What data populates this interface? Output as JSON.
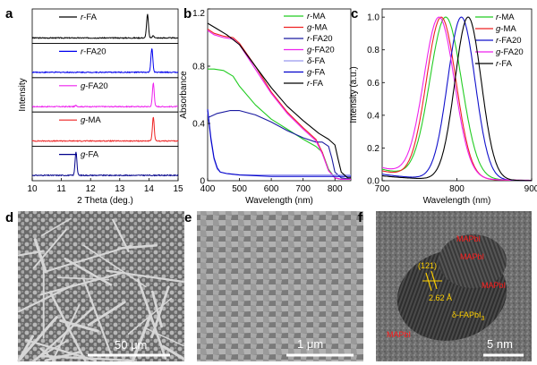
{
  "panels": {
    "a": "a",
    "b": "b",
    "c": "c",
    "d": "d",
    "e": "e",
    "f": "f"
  },
  "colors": {
    "r-MA": "#22cc22",
    "g-MA": "#ee2222",
    "r-FA20": "#1a1aa0",
    "g-FA20": "#ee22ee",
    "delta-FA": "#9999ee",
    "g-FA": "#0000cc",
    "r-FA": "#000000",
    "r-FA20-c": "#1111cc",
    "xrd_g-FA": "#00008b",
    "xrd_r-FA20": "#0000ee"
  },
  "chart_data": [
    {
      "type": "line",
      "panel": "a",
      "xlabel": "2 Theta (deg.)",
      "ylabel": "Intensity",
      "xlim": [
        10,
        15
      ],
      "xticks": [
        "10",
        "11",
        "12",
        "13",
        "14",
        "15"
      ],
      "stacked": true,
      "series": [
        {
          "name": "r-FA",
          "prefix": "r",
          "suffix": "-FA",
          "peaks": [
            {
              "x": 13.95,
              "height": 1.0
            },
            {
              "x": 14.15,
              "height": 0.1
            }
          ]
        },
        {
          "name": "r-FA20",
          "prefix": "r",
          "suffix": "-FA20",
          "peaks": [
            {
              "x": 14.1,
              "height": 1.0
            }
          ]
        },
        {
          "name": "g-FA20",
          "prefix": "g",
          "suffix": "-FA20",
          "peaks": [
            {
              "x": 14.15,
              "height": 1.0
            },
            {
              "x": 11.5,
              "height": 0.05
            }
          ]
        },
        {
          "name": "g-MA",
          "prefix": "g",
          "suffix": "-MA",
          "peaks": [
            {
              "x": 14.15,
              "height": 1.0
            }
          ]
        },
        {
          "name": "g-FA",
          "prefix": "g",
          "suffix": "-FA",
          "peaks": [
            {
              "x": 11.5,
              "height": 1.0
            }
          ]
        }
      ]
    },
    {
      "type": "line",
      "panel": "b",
      "xlabel": "Wavelength (nm)",
      "ylabel": "Absorbance",
      "xlim": [
        400,
        850
      ],
      "ylim": [
        0,
        1.2
      ],
      "xticks": [
        "400",
        "500",
        "600",
        "700",
        "800"
      ],
      "yticks": [
        "0",
        "0.4",
        "0.8",
        "1.2"
      ],
      "legend": "right",
      "series": [
        {
          "name": "r-MA",
          "prefix": "r",
          "suffix": "-MA",
          "x": [
            400,
            420,
            450,
            480,
            500,
            550,
            600,
            650,
            700,
            740,
            760,
            780,
            800,
            820,
            850
          ],
          "y": [
            0.78,
            0.78,
            0.77,
            0.73,
            0.66,
            0.53,
            0.43,
            0.36,
            0.29,
            0.24,
            0.2,
            0.08,
            0.02,
            0.01,
            0.01
          ]
        },
        {
          "name": "g-MA",
          "prefix": "g",
          "suffix": "-MA",
          "x": [
            400,
            420,
            450,
            480,
            500,
            550,
            600,
            650,
            700,
            740,
            760,
            780,
            800,
            820,
            850
          ],
          "y": [
            1.06,
            1.03,
            1.01,
            1.0,
            0.96,
            0.8,
            0.62,
            0.48,
            0.37,
            0.29,
            0.2,
            0.07,
            0.02,
            0.01,
            0.01
          ]
        },
        {
          "name": "r-FA20",
          "prefix": "r",
          "suffix": "-FA20",
          "x": [
            400,
            430,
            470,
            500,
            550,
            600,
            650,
            700,
            740,
            760,
            780,
            790,
            800,
            820,
            850
          ],
          "y": [
            0.44,
            0.47,
            0.49,
            0.49,
            0.46,
            0.41,
            0.35,
            0.3,
            0.27,
            0.27,
            0.24,
            0.16,
            0.06,
            0.02,
            0.01
          ]
        },
        {
          "name": "g-FA20",
          "prefix": "g",
          "suffix": "-FA20",
          "x": [
            400,
            420,
            450,
            480,
            500,
            550,
            600,
            650,
            700,
            740,
            760,
            780,
            800,
            820,
            850
          ],
          "y": [
            1.05,
            1.02,
            1.0,
            0.99,
            0.95,
            0.78,
            0.61,
            0.47,
            0.36,
            0.28,
            0.19,
            0.07,
            0.02,
            0.01,
            0.01
          ]
        },
        {
          "name": "δ-FA",
          "prefix": "δ",
          "suffix": "-FA",
          "x": [
            400,
            410,
            420,
            430,
            440,
            460,
            500,
            600,
            700,
            850
          ],
          "y": [
            0.48,
            0.28,
            0.15,
            0.08,
            0.06,
            0.05,
            0.04,
            0.04,
            0.04,
            0.04
          ]
        },
        {
          "name": "g-FA",
          "prefix": "g",
          "suffix": "-FA",
          "x": [
            400,
            410,
            420,
            430,
            440,
            460,
            500,
            600,
            700,
            850
          ],
          "y": [
            0.5,
            0.3,
            0.16,
            0.09,
            0.06,
            0.05,
            0.04,
            0.03,
            0.03,
            0.03
          ]
        },
        {
          "name": "r-FA",
          "prefix": "r",
          "suffix": "-FA",
          "x": [
            400,
            430,
            460,
            500,
            550,
            600,
            650,
            700,
            750,
            780,
            800,
            810,
            820,
            840,
            850
          ],
          "y": [
            1.1,
            1.06,
            1.02,
            0.95,
            0.8,
            0.65,
            0.52,
            0.42,
            0.33,
            0.29,
            0.25,
            0.15,
            0.06,
            0.02,
            0.02
          ]
        }
      ]
    },
    {
      "type": "line",
      "panel": "c",
      "xlabel": "Wavelength (nm)",
      "ylabel": "Intensity (a.u.)",
      "xlim": [
        700,
        900
      ],
      "ylim": [
        0,
        1.05
      ],
      "xticks": [
        "700",
        "800",
        "900"
      ],
      "yticks": [
        "0.0",
        "0.2",
        "0.4",
        "0.6",
        "0.8",
        "1.0"
      ],
      "legend": "right",
      "series": [
        {
          "name": "r-MA",
          "prefix": "r",
          "suffix": "-MA",
          "peak": 785,
          "width": 30,
          "baseline": 0.07
        },
        {
          "name": "g-MA",
          "prefix": "g",
          "suffix": "-MA",
          "peak": 779,
          "width": 28,
          "baseline": 0.06
        },
        {
          "name": "r-FA20",
          "prefix": "r",
          "suffix": "-FA20",
          "peak": 806,
          "width": 26,
          "baseline": 0.04
        },
        {
          "name": "g-FA20",
          "prefix": "g",
          "suffix": "-FA20",
          "peak": 776,
          "width": 29,
          "baseline": 0.08
        },
        {
          "name": "r-FA",
          "prefix": "r",
          "suffix": "-FA",
          "peak": 815,
          "width": 25,
          "baseline": 0.03
        }
      ]
    }
  ],
  "micrographs": {
    "d": {
      "scale_bar": "50 μm"
    },
    "e": {
      "scale_bar": "1 μm"
    },
    "f": {
      "scale_bar": "5 nm",
      "plane": "(121)",
      "spacing": "2.62 Å",
      "phase_label_main": "δ-FAPbI",
      "phase_label_sub": "3",
      "red_labels": [
        "MAPbI",
        "MAPbI",
        "MAPbI",
        "MAPbI"
      ]
    }
  }
}
